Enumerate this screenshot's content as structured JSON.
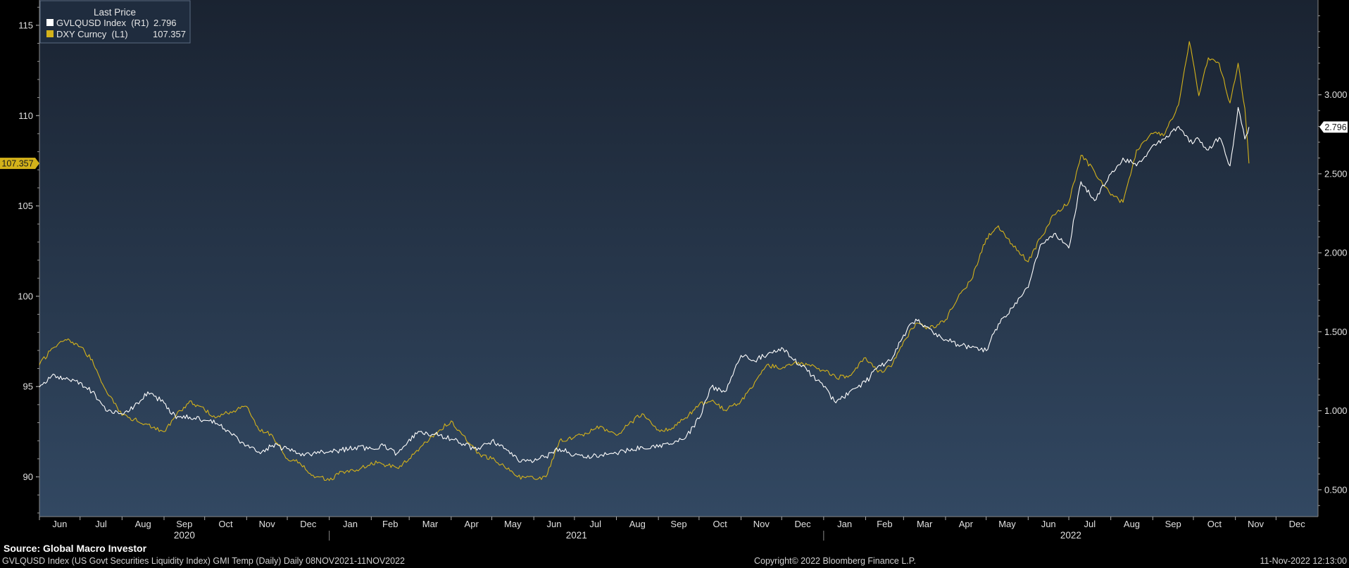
{
  "colors": {
    "white_series": "#ffffff",
    "yellow_series": "#d4b21a",
    "plot_top": "#1a2331",
    "plot_bottom": "#324862",
    "axis": "#cccccc"
  },
  "legend": {
    "header": "Last Price",
    "rows": [
      {
        "label": "GVLQUSD Index  (R1)",
        "value": "2.796",
        "color": "#ffffff"
      },
      {
        "label": "DXY Curncy  (L1)",
        "value": "107.357",
        "color": "#d4b21a"
      }
    ]
  },
  "footer": {
    "source": "Source: Global Macro Investor",
    "description": "GVLQUSD Index (US Govt Securities Liquidity Index) GMI Temp (Daily)  Daily 08NOV2021-11NOV2022",
    "copyright": "Copyright© 2022 Bloomberg Finance L.P.",
    "timestamp": "11-Nov-2022 12:13:00"
  },
  "chart_data": {
    "type": "line",
    "left_axis": {
      "ylim": [
        87.8,
        116.4
      ],
      "ticks": [
        "115",
        "110",
        "105",
        "100",
        "95",
        "90"
      ],
      "last_value_tag": "107.357"
    },
    "right_axis": {
      "ylim": [
        0.33,
        3.6
      ],
      "ticks": [
        "3.000",
        "2.500",
        "2.000",
        "1.500",
        "1.000",
        "0.500"
      ],
      "last_value_tag": "2.796"
    },
    "x_axis": {
      "months": [
        "Jun",
        "Jul",
        "Aug",
        "Sep",
        "Oct",
        "Nov",
        "Dec",
        "Jan",
        "Feb",
        "Mar",
        "Apr",
        "May",
        "Jun",
        "Jul",
        "Aug",
        "Sep",
        "Oct",
        "Nov",
        "Dec",
        "Jan",
        "Feb",
        "Mar",
        "Apr",
        "May",
        "Jun",
        "Jul",
        "Aug",
        "Sep",
        "Oct",
        "Nov",
        "Dec"
      ],
      "years": [
        "2020",
        "2021",
        "2022"
      ],
      "start": "2020-06",
      "end": "2022-12"
    },
    "series": [
      {
        "name": "DXY Curncy  (L1)",
        "axis": "left",
        "color": "#d4b21a",
        "points": [
          [
            "2020-06-01",
            96.2
          ],
          [
            "2020-06-10",
            97.1
          ],
          [
            "2020-06-20",
            97.6
          ],
          [
            "2020-07-01",
            97.2
          ],
          [
            "2020-07-10",
            96.5
          ],
          [
            "2020-07-20",
            94.8
          ],
          [
            "2020-08-01",
            93.4
          ],
          [
            "2020-08-10",
            93.2
          ],
          [
            "2020-08-20",
            92.9
          ],
          [
            "2020-09-01",
            92.5
          ],
          [
            "2020-09-10",
            93.4
          ],
          [
            "2020-09-20",
            94.2
          ],
          [
            "2020-10-01",
            93.7
          ],
          [
            "2020-10-10",
            93.3
          ],
          [
            "2020-10-20",
            93.6
          ],
          [
            "2020-11-01",
            93.9
          ],
          [
            "2020-11-10",
            92.6
          ],
          [
            "2020-11-20",
            92.3
          ],
          [
            "2020-12-01",
            91.0
          ],
          [
            "2020-12-10",
            90.8
          ],
          [
            "2020-12-20",
            90.1
          ],
          [
            "2021-01-01",
            89.8
          ],
          [
            "2021-01-10",
            90.3
          ],
          [
            "2021-01-20",
            90.3
          ],
          [
            "2021-02-01",
            90.8
          ],
          [
            "2021-02-10",
            90.7
          ],
          [
            "2021-02-20",
            90.5
          ],
          [
            "2021-03-01",
            91.0
          ],
          [
            "2021-03-10",
            91.7
          ],
          [
            "2021-03-20",
            92.4
          ],
          [
            "2021-04-01",
            93.1
          ],
          [
            "2021-04-10",
            92.3
          ],
          [
            "2021-04-20",
            91.3
          ],
          [
            "2021-05-01",
            91.0
          ],
          [
            "2021-05-10",
            90.6
          ],
          [
            "2021-05-20",
            90.0
          ],
          [
            "2021-06-01",
            89.9
          ],
          [
            "2021-06-10",
            90.0
          ],
          [
            "2021-06-20",
            92.0
          ],
          [
            "2021-07-01",
            92.2
          ],
          [
            "2021-07-10",
            92.4
          ],
          [
            "2021-07-20",
            92.8
          ],
          [
            "2021-08-01",
            92.3
          ],
          [
            "2021-08-10",
            92.9
          ],
          [
            "2021-08-20",
            93.5
          ],
          [
            "2021-09-01",
            92.6
          ],
          [
            "2021-09-10",
            92.6
          ],
          [
            "2021-09-20",
            93.2
          ],
          [
            "2021-10-01",
            94.0
          ],
          [
            "2021-10-10",
            94.2
          ],
          [
            "2021-10-20",
            93.7
          ],
          [
            "2021-11-01",
            94.2
          ],
          [
            "2021-11-10",
            95.0
          ],
          [
            "2021-11-20",
            96.2
          ],
          [
            "2021-12-01",
            96.0
          ],
          [
            "2021-12-10",
            96.3
          ],
          [
            "2021-12-20",
            96.2
          ],
          [
            "2022-01-01",
            95.9
          ],
          [
            "2022-01-10",
            95.5
          ],
          [
            "2022-01-20",
            95.6
          ],
          [
            "2022-02-01",
            96.6
          ],
          [
            "2022-02-10",
            95.8
          ],
          [
            "2022-02-20",
            96.1
          ],
          [
            "2022-03-01",
            97.5
          ],
          [
            "2022-03-10",
            98.5
          ],
          [
            "2022-03-20",
            98.2
          ],
          [
            "2022-04-01",
            98.7
          ],
          [
            "2022-04-10",
            99.9
          ],
          [
            "2022-04-20",
            100.9
          ],
          [
            "2022-05-01",
            103.2
          ],
          [
            "2022-05-10",
            103.9
          ],
          [
            "2022-05-20",
            102.9
          ],
          [
            "2022-06-01",
            101.9
          ],
          [
            "2022-06-10",
            103.2
          ],
          [
            "2022-06-20",
            104.5
          ],
          [
            "2022-07-01",
            105.2
          ],
          [
            "2022-07-10",
            107.8
          ],
          [
            "2022-07-20",
            106.9
          ],
          [
            "2022-08-01",
            105.6
          ],
          [
            "2022-08-10",
            105.2
          ],
          [
            "2022-08-20",
            108.1
          ],
          [
            "2022-09-01",
            109.0
          ],
          [
            "2022-09-10",
            109.0
          ],
          [
            "2022-09-20",
            110.6
          ],
          [
            "2022-09-28",
            114.1
          ],
          [
            "2022-10-05",
            111.1
          ],
          [
            "2022-10-12",
            113.2
          ],
          [
            "2022-10-20",
            112.9
          ],
          [
            "2022-10-28",
            110.7
          ],
          [
            "2022-11-03",
            112.9
          ],
          [
            "2022-11-08",
            110.4
          ],
          [
            "2022-11-11",
            107.357
          ]
        ]
      },
      {
        "name": "GVLQUSD Index  (R1)",
        "axis": "right",
        "color": "#ffffff",
        "points": [
          [
            "2020-06-01",
            1.15
          ],
          [
            "2020-06-10",
            1.22
          ],
          [
            "2020-06-20",
            1.2
          ],
          [
            "2020-07-01",
            1.18
          ],
          [
            "2020-07-10",
            1.12
          ],
          [
            "2020-07-20",
            1.0
          ],
          [
            "2020-08-01",
            0.98
          ],
          [
            "2020-08-10",
            1.03
          ],
          [
            "2020-08-20",
            1.12
          ],
          [
            "2020-09-01",
            1.05
          ],
          [
            "2020-09-10",
            0.95
          ],
          [
            "2020-09-20",
            0.96
          ],
          [
            "2020-10-01",
            0.94
          ],
          [
            "2020-10-10",
            0.92
          ],
          [
            "2020-10-20",
            0.86
          ],
          [
            "2020-11-01",
            0.78
          ],
          [
            "2020-11-10",
            0.74
          ],
          [
            "2020-11-20",
            0.78
          ],
          [
            "2020-12-01",
            0.76
          ],
          [
            "2020-12-10",
            0.73
          ],
          [
            "2020-12-20",
            0.73
          ],
          [
            "2021-01-01",
            0.74
          ],
          [
            "2021-01-10",
            0.75
          ],
          [
            "2021-01-20",
            0.77
          ],
          [
            "2021-02-01",
            0.76
          ],
          [
            "2021-02-10",
            0.78
          ],
          [
            "2021-02-20",
            0.73
          ],
          [
            "2021-03-01",
            0.82
          ],
          [
            "2021-03-10",
            0.87
          ],
          [
            "2021-03-20",
            0.85
          ],
          [
            "2021-04-01",
            0.82
          ],
          [
            "2021-04-10",
            0.79
          ],
          [
            "2021-04-20",
            0.75
          ],
          [
            "2021-05-01",
            0.81
          ],
          [
            "2021-05-10",
            0.76
          ],
          [
            "2021-05-20",
            0.69
          ],
          [
            "2021-06-01",
            0.68
          ],
          [
            "2021-06-10",
            0.71
          ],
          [
            "2021-06-20",
            0.76
          ],
          [
            "2021-07-01",
            0.72
          ],
          [
            "2021-07-10",
            0.7
          ],
          [
            "2021-07-20",
            0.72
          ],
          [
            "2021-08-01",
            0.73
          ],
          [
            "2021-08-10",
            0.75
          ],
          [
            "2021-08-20",
            0.77
          ],
          [
            "2021-09-01",
            0.77
          ],
          [
            "2021-09-10",
            0.79
          ],
          [
            "2021-09-20",
            0.82
          ],
          [
            "2021-10-01",
            0.95
          ],
          [
            "2021-10-10",
            1.15
          ],
          [
            "2021-10-20",
            1.12
          ],
          [
            "2021-11-01",
            1.35
          ],
          [
            "2021-11-10",
            1.32
          ],
          [
            "2021-11-20",
            1.35
          ],
          [
            "2021-12-01",
            1.4
          ],
          [
            "2021-12-10",
            1.32
          ],
          [
            "2021-12-20",
            1.25
          ],
          [
            "2022-01-01",
            1.15
          ],
          [
            "2022-01-10",
            1.05
          ],
          [
            "2022-01-20",
            1.12
          ],
          [
            "2022-02-01",
            1.18
          ],
          [
            "2022-02-10",
            1.28
          ],
          [
            "2022-02-20",
            1.32
          ],
          [
            "2022-03-01",
            1.48
          ],
          [
            "2022-03-10",
            1.58
          ],
          [
            "2022-03-20",
            1.52
          ],
          [
            "2022-04-01",
            1.45
          ],
          [
            "2022-04-10",
            1.42
          ],
          [
            "2022-04-20",
            1.4
          ],
          [
            "2022-05-01",
            1.38
          ],
          [
            "2022-05-10",
            1.55
          ],
          [
            "2022-05-20",
            1.65
          ],
          [
            "2022-06-01",
            1.78
          ],
          [
            "2022-06-10",
            2.05
          ],
          [
            "2022-06-20",
            2.12
          ],
          [
            "2022-07-01",
            2.03
          ],
          [
            "2022-07-10",
            2.45
          ],
          [
            "2022-07-20",
            2.33
          ],
          [
            "2022-08-01",
            2.5
          ],
          [
            "2022-08-10",
            2.6
          ],
          [
            "2022-08-20",
            2.55
          ],
          [
            "2022-09-01",
            2.68
          ],
          [
            "2022-09-10",
            2.72
          ],
          [
            "2022-09-20",
            2.8
          ],
          [
            "2022-09-28",
            2.7
          ],
          [
            "2022-10-05",
            2.72
          ],
          [
            "2022-10-12",
            2.65
          ],
          [
            "2022-10-20",
            2.73
          ],
          [
            "2022-10-28",
            2.55
          ],
          [
            "2022-11-03",
            2.92
          ],
          [
            "2022-11-08",
            2.72
          ],
          [
            "2022-11-11",
            2.796
          ]
        ]
      }
    ]
  }
}
